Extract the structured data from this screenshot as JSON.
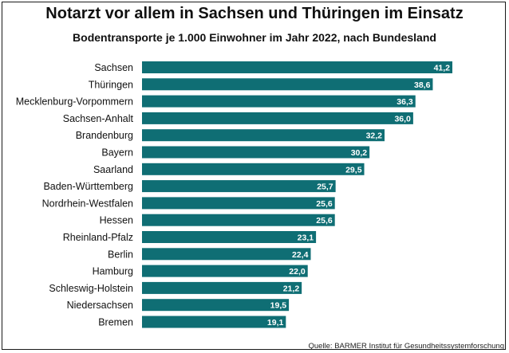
{
  "title": "Notarzt vor allem in Sachsen und Thüringen im Einsatz",
  "subtitle": "Bodentransporte je 1.000 Einwohner im Jahr 2022, nach Bundesland",
  "source": "Quelle: BARMER Institut für Gesundheitssystemforschung",
  "colors": {
    "bar": "#0f6e74",
    "label_text": "#ffffff"
  },
  "chart_data": {
    "type": "bar",
    "orientation": "horizontal",
    "title": "Notarzt vor allem in Sachsen und Thüringen im Einsatz",
    "subtitle": "Bodentransporte je 1.000 Einwohner im Jahr 2022, nach Bundesland",
    "categories": [
      "Sachsen",
      "Thüringen",
      "Mecklenburg-Vorpommern",
      "Sachsen-Anhalt",
      "Brandenburg",
      "Bayern",
      "Saarland",
      "Baden-Württemberg",
      "Nordrhein-Westfalen",
      "Hessen",
      "Rheinland-Pfalz",
      "Berlin",
      "Hamburg",
      "Schleswig-Holstein",
      "Niedersachsen",
      "Bremen"
    ],
    "values": [
      41.2,
      38.6,
      36.3,
      36.0,
      32.2,
      30.2,
      29.5,
      25.7,
      25.6,
      25.6,
      23.1,
      22.4,
      22.0,
      21.2,
      19.5,
      19.1
    ],
    "value_labels": [
      "41,2",
      "38,6",
      "36,3",
      "36,0",
      "32,2",
      "30,2",
      "29,5",
      "25,7",
      "25,6",
      "25,6",
      "23,1",
      "22,4",
      "22,0",
      "21,2",
      "19,5",
      "19,1"
    ],
    "xlim": [
      0,
      41.2
    ],
    "grid": false,
    "legend": "none",
    "xlabel": "",
    "ylabel": ""
  }
}
